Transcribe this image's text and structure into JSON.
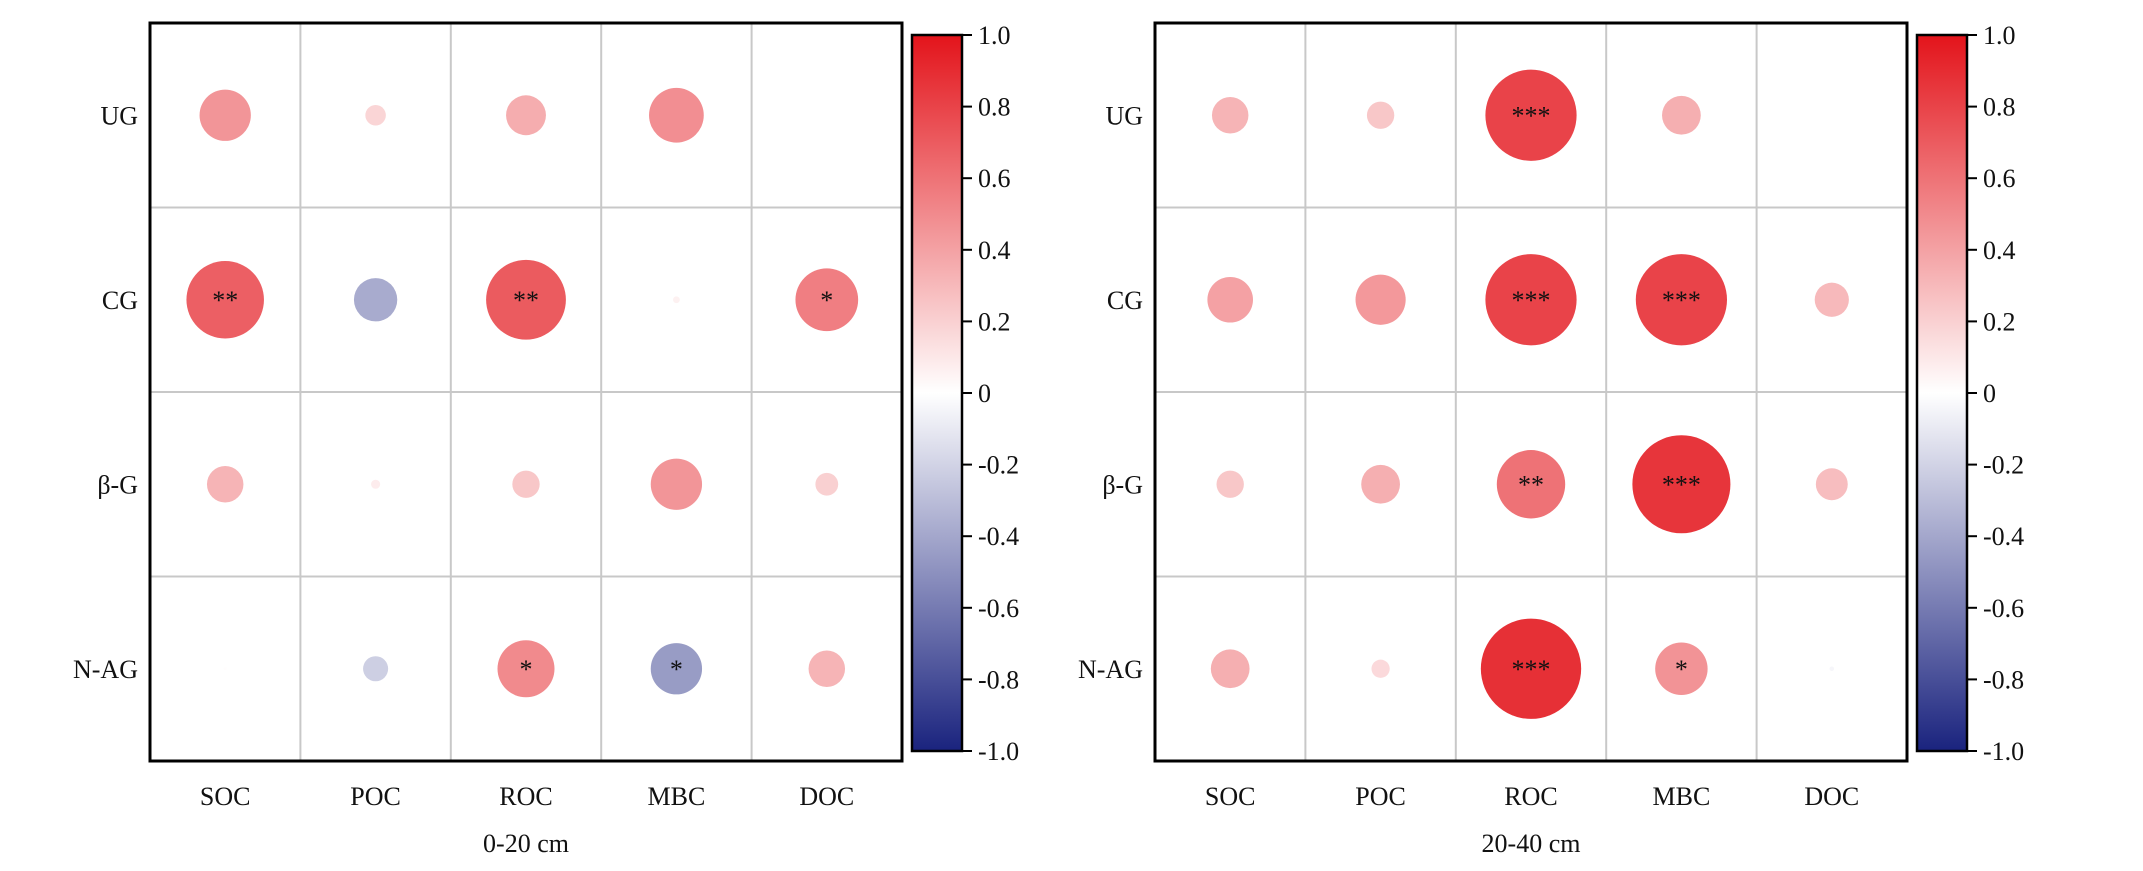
{
  "colorbar": {
    "ticks": [
      "1.0",
      "0.8",
      "0.6",
      "0.4",
      "0.2",
      "0",
      "-0.2",
      "-0.4",
      "-0.6",
      "-0.8",
      "-1.0"
    ],
    "colors": {
      "positive": "#e3141b",
      "neutral": "#ffffff",
      "negative": "#1a237e"
    }
  },
  "chart_data": [
    {
      "type": "heatmap",
      "xlabel": "0-20 cm",
      "columns": [
        "SOC",
        "POC",
        "ROC",
        "MBC",
        "DOC"
      ],
      "rows": [
        "UG",
        "CG",
        "β-G",
        "N-AG"
      ],
      "vlim": [
        -1,
        1
      ],
      "values": [
        [
          0.45,
          0.18,
          0.35,
          0.48,
          null
        ],
        [
          0.68,
          -0.38,
          0.7,
          0.06,
          0.55
        ],
        [
          0.32,
          0.08,
          0.24,
          0.45,
          0.2
        ],
        [
          0.01,
          -0.22,
          0.5,
          -0.45,
          0.32
        ]
      ],
      "significance": [
        [
          "",
          "",
          "",
          "",
          ""
        ],
        [
          "**",
          "",
          "**",
          "",
          "*"
        ],
        [
          "",
          "",
          "",
          "",
          ""
        ],
        [
          "",
          "",
          "*",
          "*",
          ""
        ]
      ]
    },
    {
      "type": "heatmap",
      "xlabel": "20-40 cm",
      "columns": [
        "SOC",
        "POC",
        "ROC",
        "MBC",
        "DOC"
      ],
      "rows": [
        "UG",
        "CG",
        "β-G",
        "N-AG"
      ],
      "vlim": [
        -1,
        1
      ],
      "values": [
        [
          0.32,
          0.24,
          0.8,
          0.34,
          null
        ],
        [
          0.4,
          0.44,
          0.8,
          0.8,
          0.3
        ],
        [
          0.24,
          0.34,
          0.6,
          0.86,
          0.28
        ],
        [
          0.34,
          0.16,
          0.88,
          0.46,
          -0.04
        ]
      ],
      "significance": [
        [
          "",
          "",
          "***",
          "",
          ""
        ],
        [
          "",
          "",
          "***",
          "***",
          ""
        ],
        [
          "",
          "",
          "**",
          "***",
          ""
        ],
        [
          "",
          "",
          "***",
          "*",
          ""
        ]
      ]
    }
  ]
}
